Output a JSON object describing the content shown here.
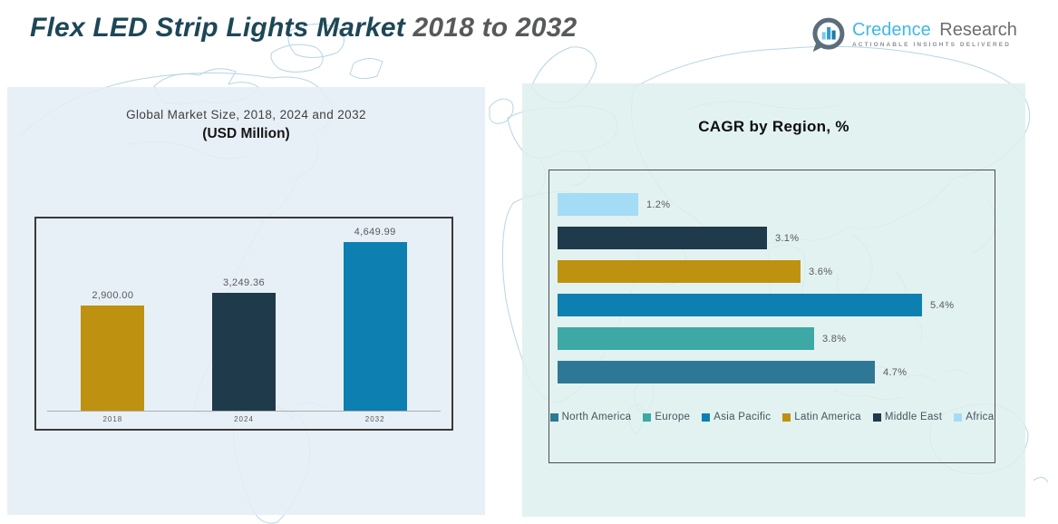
{
  "header": {
    "title_main": "Flex LED Strip Lights Market",
    "title_years": " 2018 to 2032",
    "logo": {
      "brand_primary": "Credence",
      "brand_secondary": "Research",
      "tagline": "Actionable Insights Delivered",
      "icon": "bar-chart-speech-bubble-icon"
    }
  },
  "colors": {
    "title_main": "#1D4756",
    "title_years": "#58595B",
    "left_panel_bg": "#E4EEF6",
    "right_panel_bg": "#DDF0ED",
    "map_line": "#A9CFDF",
    "gold": "#BE9210",
    "navy": "#1F3A4B",
    "blue": "#0E7FB1",
    "teal": "#3EA8A5",
    "steel_blue": "#2E7896",
    "sky_blue": "#A5DCF5"
  },
  "chart_data": [
    {
      "type": "bar",
      "title": "Global Market Size, 2018, 2024 and 2032",
      "subtitle": "(USD Million)",
      "categories": [
        "2018",
        "2024",
        "2032"
      ],
      "values": [
        2900.0,
        3249.36,
        4649.99
      ],
      "value_labels": [
        "2,900.00",
        "3,249.36",
        "4,649.99"
      ],
      "bar_colors": [
        "#BE9210",
        "#1F3A4B",
        "#0E7FB1"
      ],
      "xlabel": "",
      "ylabel": "",
      "ylim": [
        0,
        5000
      ],
      "grid": false,
      "legend_position": "none"
    },
    {
      "type": "bar",
      "orientation": "horizontal",
      "title": "CAGR by Region, %",
      "categories": [
        "North America",
        "Europe",
        "Asia Pacific",
        "Latin America",
        "Middle East",
        "Africa"
      ],
      "values": [
        4.7,
        3.8,
        5.4,
        3.6,
        3.1,
        1.2
      ],
      "value_labels": [
        "4.7%",
        "3.8%",
        "5.4%",
        "3.6%",
        "3.1%",
        "1.2%"
      ],
      "bar_colors": [
        "#2E7896",
        "#3EA8A5",
        "#0E7FB1",
        "#BE9210",
        "#1F3A4B",
        "#A5DCF5"
      ],
      "row_order_top_to_bottom": [
        "Africa",
        "Middle East",
        "Latin America",
        "Asia Pacific",
        "Europe",
        "North America"
      ],
      "xlabel": "",
      "ylabel": "",
      "xlim": [
        0,
        6
      ],
      "grid": false,
      "legend_position": "bottom"
    }
  ]
}
